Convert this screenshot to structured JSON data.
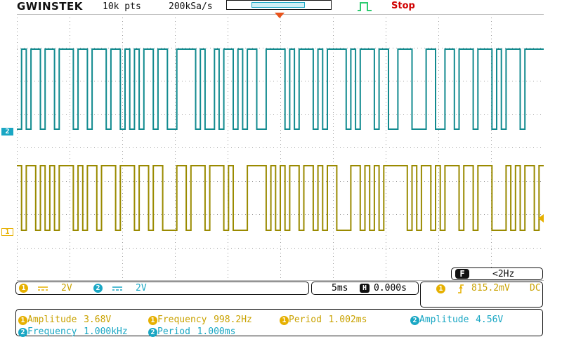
{
  "header": {
    "brand": "GWINSTEK",
    "record_length": "10k pts",
    "sample_rate": "200kSa/s",
    "status": "Stop"
  },
  "channels": {
    "ch1": {
      "marker": "1",
      "scale": "2V",
      "color": "#9a8a00"
    },
    "ch2": {
      "marker": "2",
      "scale": "2V",
      "color": "#118a8f"
    }
  },
  "filter": {
    "badge": "F",
    "value": "<2Hz"
  },
  "timebase": {
    "scale": "5ms",
    "h_badge": "H",
    "position": "0.000s"
  },
  "trigger": {
    "source": "1",
    "level": "815.2mV",
    "coupling": "DC"
  },
  "measurements": [
    {
      "ch": "1",
      "label": "Amplitude",
      "value": "3.68V"
    },
    {
      "ch": "1",
      "label": "Frequency",
      "value": "998.2Hz"
    },
    {
      "ch": "1",
      "label": "Period",
      "value": "1.002ms"
    },
    {
      "ch": "2",
      "label": "Amplitude",
      "value": "4.56V"
    },
    {
      "ch": "2",
      "label": "Frequency",
      "value": "1.000kHz"
    },
    {
      "ch": "2",
      "label": "Period",
      "value": "1.000ms"
    }
  ],
  "waveform": {
    "ch2_bits": "0101101101110110111011010101101100111101001011010110011110101110101111010111011001110001100110111011101011101111",
    "ch1_bits": "1011010101110101101110111011011000110111011101000111101010110110101100011010101111101011010111011011100010101101"
  }
}
